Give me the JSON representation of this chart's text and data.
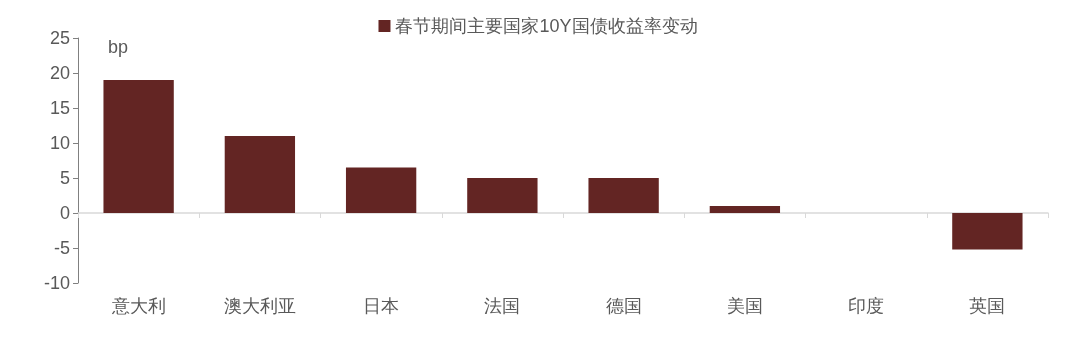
{
  "chart_data": {
    "type": "bar",
    "ylabel": "bp",
    "categories": [
      "意大利",
      "澳大利亚",
      "日本",
      "法国",
      "德国",
      "美国",
      "印度",
      "英国"
    ],
    "series": [
      {
        "name": "春节期间主要国家10Y国债收益率变动",
        "color": "#632523",
        "values": [
          19,
          11,
          6.5,
          5,
          5,
          1,
          0,
          -5.2
        ]
      }
    ],
    "ylim": [
      -10,
      25
    ],
    "yticks": [
      -10,
      -5,
      0,
      5,
      10,
      15,
      20,
      25
    ],
    "legend": "top"
  }
}
